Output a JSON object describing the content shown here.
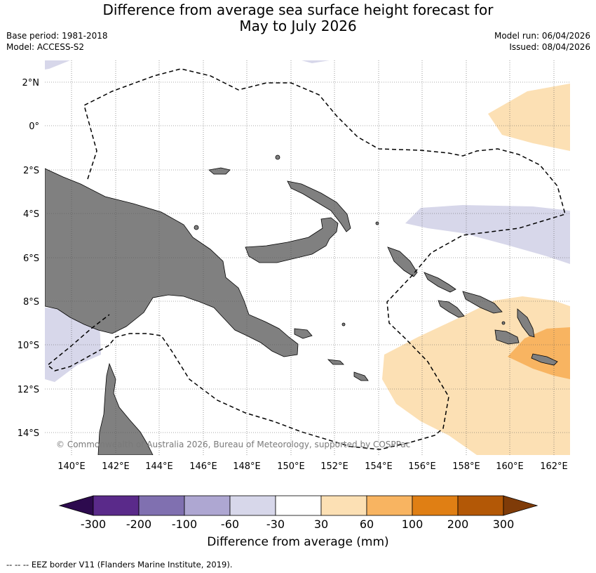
{
  "title": {
    "line1": "Difference from average sea surface height forecast for",
    "line2": "May to July 2026"
  },
  "meta": {
    "base_period": "Base period: 1981-2018",
    "model": "Model: ACCESS-S2",
    "model_run": "Model run: 06/04/2026",
    "issued": "Issued: 08/04/2026"
  },
  "map": {
    "lon_labels": [
      "140°E",
      "142°E",
      "144°E",
      "146°E",
      "148°E",
      "150°E",
      "152°E",
      "154°E",
      "156°E",
      "158°E",
      "160°E",
      "162°E"
    ],
    "lat_labels": [
      "2°N",
      "0°",
      "2°S",
      "4°S",
      "6°S",
      "8°S",
      "10°S",
      "12°S",
      "14°S"
    ],
    "copyright": "© Commonwealth of Australia 2026, Bureau of Meteorology, supported by COSPPac",
    "colors": {
      "land": "#808080",
      "ocean": "#ffffff",
      "grid": "#555555"
    }
  },
  "colorbar": {
    "tick_labels": [
      "-300",
      "-200",
      "-100",
      "-60",
      "-30",
      "30",
      "60",
      "100",
      "200",
      "300"
    ],
    "colors": [
      "#2d0a4e",
      "#5a2a8a",
      "#8070b0",
      "#aea7d2",
      "#d7d7ea",
      "#ffffff",
      "#fce0b4",
      "#f8b461",
      "#e07f14",
      "#b35806",
      "#7f3b08"
    ],
    "label": "Difference from average (mm)"
  },
  "legend": {
    "eez_note": "--  --  -- EEZ border V11 (Flanders Marine Institute, 2019)."
  }
}
